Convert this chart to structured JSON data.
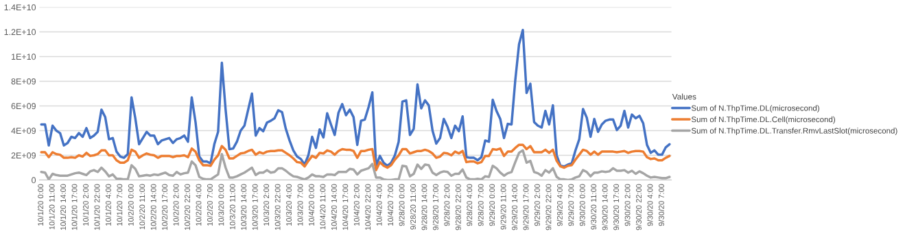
{
  "chart_data": {
    "type": "line",
    "legend_title": "Values",
    "legend": "right",
    "grid": "y",
    "categories": [
      "10/1/20 0:00",
      null,
      null,
      "10/1/20 11:00",
      null,
      null,
      "10/1/20 14:00",
      null,
      null,
      "10/1/20 17:00",
      null,
      null,
      "10/1/20 2:00",
      null,
      null,
      "10/1/20 22:00",
      null,
      null,
      "10/1/20 4:00",
      null,
      null,
      "10/1/20 7:00",
      null,
      null,
      "10/2/20 0:00",
      null,
      null,
      "10/2/20 11:00",
      null,
      null,
      "10/2/20 14:00",
      null,
      null,
      "10/2/20 17:00",
      null,
      null,
      "10/2/20 2:00",
      null,
      null,
      "10/2/20 22:00",
      null,
      null,
      "10/2/20 4:00",
      null,
      null,
      "10/2/20 7:00",
      null,
      null,
      "10/3/20 0:00",
      null,
      null,
      "10/3/20 11:00",
      null,
      null,
      "10/3/20 14:00",
      null,
      null,
      "10/3/20 17:00",
      null,
      null,
      "10/3/20 2:00",
      null,
      null,
      "10/3/20 22:00",
      null,
      null,
      "10/3/20 4:00",
      null,
      null,
      "10/3/20 7:00",
      null,
      null,
      "10/4/20 0:00",
      null,
      null,
      "10/4/20 11:00",
      null,
      null,
      "10/4/20 14:00",
      null,
      null,
      "10/4/20 17:00",
      null,
      null,
      "10/4/20 2:00",
      null,
      null,
      "10/4/20 22:00",
      null,
      null,
      "10/4/20 4:00",
      null,
      null,
      "10/4/20 7:00",
      null,
      null,
      "9/28/20 0:00",
      null,
      null,
      "9/28/20 11:00",
      null,
      null,
      "9/28/20 14:00",
      null,
      null,
      "9/28/20 17:00",
      null,
      null,
      "9/28/20 2:00",
      null,
      null,
      "9/28/20 22:00",
      null,
      null,
      "9/28/20 4:00",
      null,
      null,
      "9/28/20 7:00",
      null,
      null,
      "9/29/20 0:00",
      null,
      null,
      "9/29/20 11:00",
      null,
      null,
      "9/29/20 14:00",
      null,
      null,
      "9/29/20 17:00",
      null,
      null,
      "9/29/20 2:00",
      null,
      null,
      "9/29/20 22:00",
      null,
      null,
      "9/29/20 4:00",
      null,
      null,
      "9/29/20 7:00",
      null,
      null,
      "9/30/20 0:00",
      null,
      null,
      "9/30/20 11:00",
      null,
      null,
      "9/30/20 14:00",
      null,
      null,
      "9/30/20 17:00",
      null,
      null,
      "9/30/20 2:00",
      null,
      null,
      "9/30/20 22:00",
      null,
      null,
      "9/30/20 4:00",
      null,
      null,
      "9/30/20 7:00",
      null,
      null
    ],
    "ylim": [
      0,
      14000000000.0
    ],
    "yticks": [
      0,
      {
        "value": 2000000000.0,
        "label": "2E+09"
      },
      {
        "value": 4000000000.0,
        "label": "4E+09"
      },
      {
        "value": 6000000000.0,
        "label": "6E+09"
      },
      {
        "value": 8000000000.0,
        "label": "8E+09"
      },
      {
        "value": 10000000000.0,
        "label": "1E+10"
      },
      {
        "value": 12000000000.0,
        "label": "1.2E+10"
      },
      {
        "value": 14000000000.0,
        "label": "1.4E+10"
      }
    ],
    "series": [
      {
        "name": "Sum of N.ThpTime.DL(microsecond)",
        "color": "#4472c4",
        "values": [
          4500000000.0,
          4500000000.0,
          2800000000.0,
          4400000000.0,
          4000000000.0,
          3800000000.0,
          2800000000.0,
          3000000000.0,
          3500000000.0,
          3400000000.0,
          3800000000.0,
          3500000000.0,
          4200000000.0,
          3400000000.0,
          3600000000.0,
          3900000000.0,
          5700000000.0,
          5100000000.0,
          3300000000.0,
          3400000000.0,
          2300000000.0,
          1900000000.0,
          1800000000.0,
          2100000000.0,
          6700000000.0,
          5000000000.0,
          2900000000.0,
          3400000000.0,
          3900000000.0,
          3600000000.0,
          3600000000.0,
          2900000000.0,
          3200000000.0,
          3300000000.0,
          3400000000.0,
          3000000000.0,
          3300000000.0,
          3400000000.0,
          3600000000.0,
          3100000000.0,
          6700000000.0,
          4700000000.0,
          1900000000.0,
          1500000000.0,
          1500000000.0,
          1350000000.0,
          2900000000.0,
          3900000000.0,
          9500000000.0,
          5700000000.0,
          2500000000.0,
          2550000000.0,
          3100000000.0,
          4000000000.0,
          4400000000.0,
          5700000000.0,
          7000000000.0,
          3600000000.0,
          4200000000.0,
          3950000000.0,
          4650000000.0,
          4800000000.0,
          5000000000.0,
          5650000000.0,
          5500000000.0,
          4150000000.0,
          3200000000.0,
          2400000000.0,
          1900000000.0,
          1700000000.0,
          1250000000.0,
          2000000000.0,
          3500000000.0,
          2600000000.0,
          4100000000.0,
          3450000000.0,
          5400000000.0,
          4500000000.0,
          3650000000.0,
          5450000000.0,
          6150000000.0,
          5250000000.0,
          5700000000.0,
          5100000000.0,
          2850000000.0,
          4800000000.0,
          4900000000.0,
          5900000000.0,
          7100000000.0,
          1150000000.0,
          1950000000.0,
          1400000000.0,
          1150000000.0,
          1400000000.0,
          2000000000.0,
          3100000000.0,
          6350000000.0,
          6450000000.0,
          3650000000.0,
          4150000000.0,
          7750000000.0,
          5800000000.0,
          6450000000.0,
          6050000000.0,
          4000000000.0,
          2950000000.0,
          3400000000.0,
          4950000000.0,
          4300000000.0,
          3400000000.0,
          4400000000.0,
          3950000000.0,
          5150000000.0,
          1850000000.0,
          1800000000.0,
          1800000000.0,
          1600000000.0,
          1850000000.0,
          3200000000.0,
          3100000000.0,
          6500000000.0,
          5600000000.0,
          4950000000.0,
          3400000000.0,
          4550000000.0,
          4500000000.0,
          8100000000.0,
          11000000000.0,
          12150000000.0,
          7050000000.0,
          7800000000.0,
          4700000000.0,
          4400000000.0,
          4250000000.0,
          5600000000.0,
          4500000000.0,
          6050000000.0,
          2000000000.0,
          1150000000.0,
          1100000000.0,
          1250000000.0,
          1350000000.0,
          2400000000.0,
          3300000000.0,
          5750000000.0,
          5050000000.0,
          3500000000.0,
          4950000000.0,
          3900000000.0,
          4500000000.0,
          4800000000.0,
          4900000000.0,
          4900000000.0,
          4050000000.0,
          4400000000.0,
          5600000000.0,
          4250000000.0,
          5300000000.0,
          5000000000.0,
          5200000000.0,
          4600000000.0,
          2850000000.0,
          2200000000.0,
          2400000000.0,
          2050000000.0,
          2050000000.0,
          2650000000.0,
          2900000000.0
        ]
      },
      {
        "name": "Sum of N.ThpTime.DL.Cell(microsecond)",
        "color": "#ed7d31",
        "values": [
          2250000000.0,
          2250000000.0,
          1850000000.0,
          2250000000.0,
          2100000000.0,
          2050000000.0,
          1800000000.0,
          1800000000.0,
          1850000000.0,
          1800000000.0,
          2000000000.0,
          1900000000.0,
          2200000000.0,
          1950000000.0,
          2000000000.0,
          2100000000.0,
          2400000000.0,
          2400000000.0,
          2000000000.0,
          2000000000.0,
          1600000000.0,
          1400000000.0,
          1400000000.0,
          1600000000.0,
          2450000000.0,
          2300000000.0,
          1800000000.0,
          2000000000.0,
          2150000000.0,
          2050000000.0,
          2000000000.0,
          1800000000.0,
          1950000000.0,
          1950000000.0,
          1950000000.0,
          1850000000.0,
          1950000000.0,
          1950000000.0,
          2000000000.0,
          1850000000.0,
          2550000000.0,
          2300000000.0,
          1600000000.0,
          1200000000.0,
          1200000000.0,
          1150000000.0,
          1650000000.0,
          2000000000.0,
          2750000000.0,
          2450000000.0,
          1750000000.0,
          1750000000.0,
          1950000000.0,
          2150000000.0,
          2200000000.0,
          2350000000.0,
          2450000000.0,
          2050000000.0,
          2250000000.0,
          2150000000.0,
          2300000000.0,
          2350000000.0,
          2350000000.0,
          2400000000.0,
          2400000000.0,
          2200000000.0,
          2000000000.0,
          1750000000.0,
          1450000000.0,
          1400000000.0,
          1100000000.0,
          1550000000.0,
          1950000000.0,
          1800000000.0,
          2200000000.0,
          2150000000.0,
          2400000000.0,
          2300000000.0,
          2050000000.0,
          2350000000.0,
          2500000000.0,
          2450000000.0,
          2450000000.0,
          2350000000.0,
          1800000000.0,
          2350000000.0,
          2350000000.0,
          2450000000.0,
          2500000000.0,
          800000000.0,
          1450000000.0,
          1150000000.0,
          1000000000.0,
          1200000000.0,
          1650000000.0,
          2000000000.0,
          2500000000.0,
          2500000000.0,
          2150000000.0,
          2250000000.0,
          2350000000.0,
          2350000000.0,
          2450000000.0,
          2350000000.0,
          2150000000.0,
          1800000000.0,
          1900000000.0,
          2200000000.0,
          2150000000.0,
          2000000000.0,
          2300000000.0,
          2150000000.0,
          2350000000.0,
          1450000000.0,
          1500000000.0,
          1500000000.0,
          1350000000.0,
          1450000000.0,
          1950000000.0,
          1950000000.0,
          2500000000.0,
          2450000000.0,
          2550000000.0,
          1950000000.0,
          2300000000.0,
          2300000000.0,
          2600000000.0,
          2850000000.0,
          2850000000.0,
          2500000000.0,
          2750000000.0,
          2250000000.0,
          2250000000.0,
          2250000000.0,
          2450000000.0,
          2200000000.0,
          2450000000.0,
          1550000000.0,
          1100000000.0,
          1000000000.0,
          1150000000.0,
          1200000000.0,
          1650000000.0,
          2050000000.0,
          2450000000.0,
          2350000000.0,
          2050000000.0,
          2300000000.0,
          2050000000.0,
          2300000000.0,
          2300000000.0,
          2300000000.0,
          2300000000.0,
          2250000000.0,
          2300000000.0,
          2350000000.0,
          2200000000.0,
          2300000000.0,
          2350000000.0,
          2350000000.0,
          2300000000.0,
          1850000000.0,
          1700000000.0,
          1750000000.0,
          1600000000.0,
          1600000000.0,
          1800000000.0,
          1950000000.0
        ]
      },
      {
        "name": "Sum of N.ThpTime.DL.Transfer.RmvLastSlot(microsecond)",
        "color": "#a5a5a5",
        "values": [
          650000000.0,
          600000000.0,
          50000000.0,
          500000000.0,
          400000000.0,
          350000000.0,
          350000000.0,
          350000000.0,
          450000000.0,
          550000000.0,
          600000000.0,
          500000000.0,
          400000000.0,
          700000000.0,
          800000000.0,
          650000000.0,
          1000000000.0,
          700000000.0,
          300000000.0,
          450000000.0,
          100000000.0,
          100000000.0,
          50000000.0,
          50000000.0,
          1200000000.0,
          900000000.0,
          300000000.0,
          350000000.0,
          400000000.0,
          350000000.0,
          450000000.0,
          400000000.0,
          500000000.0,
          600000000.0,
          400000000.0,
          350000000.0,
          650000000.0,
          450000000.0,
          550000000.0,
          600000000.0,
          1500000000.0,
          1200000000.0,
          250000000.0,
          100000000.0,
          50000000.0,
          50000000.0,
          250000000.0,
          450000000.0,
          2100000000.0,
          1000000000.0,
          200000000.0,
          200000000.0,
          300000000.0,
          450000000.0,
          600000000.0,
          800000000.0,
          1000000000.0,
          400000000.0,
          600000000.0,
          600000000.0,
          800000000.0,
          600000000.0,
          650000000.0,
          950000000.0,
          950000000.0,
          750000000.0,
          500000000.0,
          300000000.0,
          250000000.0,
          150000000.0,
          50000000.0,
          200000000.0,
          450000000.0,
          300000000.0,
          300000000.0,
          250000000.0,
          450000000.0,
          450000000.0,
          400000000.0,
          650000000.0,
          650000000.0,
          650000000.0,
          900000000.0,
          850000000.0,
          450000000.0,
          750000000.0,
          850000000.0,
          950000000.0,
          1300000000.0,
          200000000.0,
          200000000.0,
          50000000.0,
          0,
          0,
          50000000.0,
          50000000.0,
          1150000000.0,
          1100000000.0,
          300000000.0,
          500000000.0,
          1250000000.0,
          900000000.0,
          1250000000.0,
          1200000000.0,
          600000000.0,
          400000000.0,
          600000000.0,
          700000000.0,
          650000000.0,
          350000000.0,
          500000000.0,
          500000000.0,
          850000000.0,
          200000000.0,
          50000000.0,
          50000000.0,
          100000000.0,
          50000000.0,
          300000000.0,
          250000000.0,
          1150000000.0,
          950000000.0,
          600000000.0,
          350000000.0,
          550000000.0,
          650000000.0,
          1450000000.0,
          2200000000.0,
          2400000000.0,
          1400000000.0,
          1550000000.0,
          650000000.0,
          550000000.0,
          350000000.0,
          800000000.0,
          600000000.0,
          950000000.0,
          250000000.0,
          50000000.0,
          50000000.0,
          0,
          50000000.0,
          200000000.0,
          300000000.0,
          800000000.0,
          650000000.0,
          300000000.0,
          600000000.0,
          600000000.0,
          700000000.0,
          650000000.0,
          700000000.0,
          950000000.0,
          750000000.0,
          750000000.0,
          800000000.0,
          600000000.0,
          750000000.0,
          500000000.0,
          700000000.0,
          550000000.0,
          350000000.0,
          200000000.0,
          250000000.0,
          200000000.0,
          150000000.0,
          150000000.0,
          250000000.0
        ]
      }
    ]
  }
}
